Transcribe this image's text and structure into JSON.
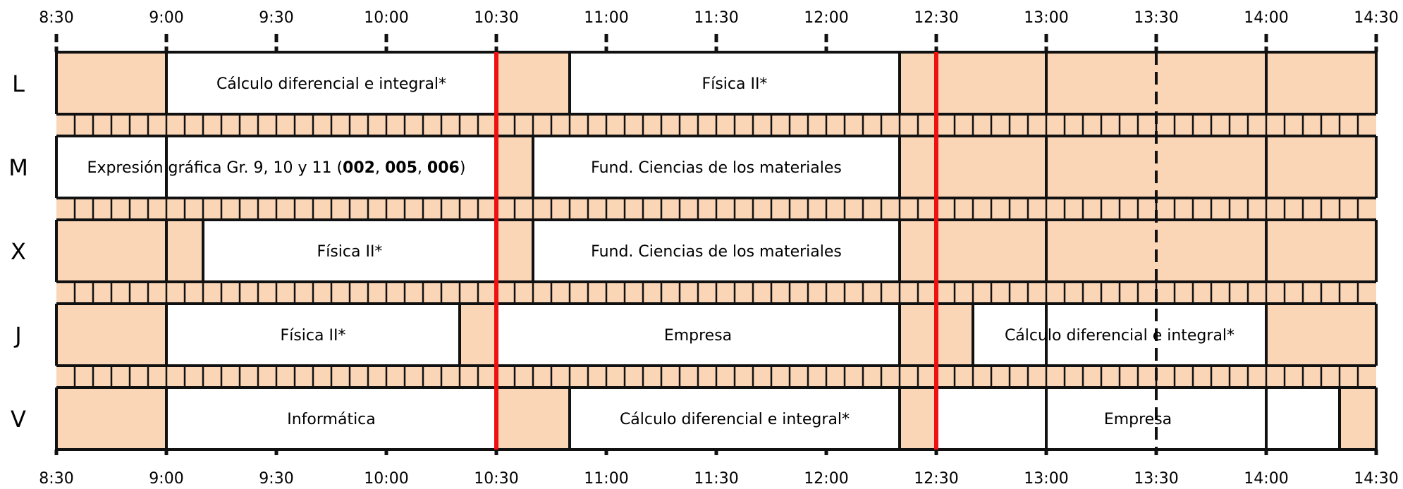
{
  "time_ticks": [
    "8:30",
    "9:00",
    "9:30",
    "10:00",
    "10:30",
    "11:00",
    "11:30",
    "12:00",
    "12:30",
    "13:00",
    "13:30",
    "14:00",
    "14:30"
  ],
  "time_range": [
    "8:30",
    "14:30"
  ],
  "colors": {
    "free": "#fad5b6",
    "class": "#ffffff",
    "line": "#111111",
    "marker": "#ee1111"
  },
  "red_markers": [
    "10:30",
    "12:30"
  ],
  "days": [
    {
      "label": "L",
      "classes": [
        {
          "start": "9:00",
          "end": "10:30",
          "parts": [
            {
              "text": "Cálculo diferencial e integral*"
            }
          ]
        },
        {
          "start": "10:50",
          "end": "12:20",
          "parts": [
            {
              "text": "Física II*"
            }
          ]
        }
      ]
    },
    {
      "label": "M",
      "classes": [
        {
          "start": "8:30",
          "end": "10:30",
          "parts": [
            {
              "text": "Expresión gráfica Gr. 9, 10 y 11 ("
            },
            {
              "text": "002",
              "bold": true
            },
            {
              "text": ", "
            },
            {
              "text": "005",
              "bold": true
            },
            {
              "text": ", "
            },
            {
              "text": "006",
              "bold": true
            },
            {
              "text": ")"
            }
          ]
        },
        {
          "start": "10:40",
          "end": "12:20",
          "parts": [
            {
              "text": "Fund. Ciencias de los materiales"
            }
          ]
        }
      ]
    },
    {
      "label": "X",
      "classes": [
        {
          "start": "9:10",
          "end": "10:30",
          "parts": [
            {
              "text": "Física II*"
            }
          ]
        },
        {
          "start": "10:40",
          "end": "12:20",
          "parts": [
            {
              "text": "Fund. Ciencias de los materiales"
            }
          ]
        }
      ]
    },
    {
      "label": "J",
      "classes": [
        {
          "start": "9:00",
          "end": "10:20",
          "parts": [
            {
              "text": "Física II*"
            }
          ]
        },
        {
          "start": "10:30",
          "end": "12:20",
          "parts": [
            {
              "text": "Empresa"
            }
          ]
        },
        {
          "start": "12:40",
          "end": "14:00",
          "parts": [
            {
              "text": "Cálculo diferencial e integral*"
            }
          ]
        }
      ]
    },
    {
      "label": "V",
      "classes": [
        {
          "start": "9:00",
          "end": "10:30",
          "parts": [
            {
              "text": "Informática"
            }
          ]
        },
        {
          "start": "10:50",
          "end": "12:20",
          "parts": [
            {
              "text": "Cálculo diferencial e integral*"
            }
          ]
        },
        {
          "start": "12:30",
          "end": "14:20",
          "parts": [
            {
              "text": "Empresa"
            }
          ]
        }
      ]
    }
  ]
}
